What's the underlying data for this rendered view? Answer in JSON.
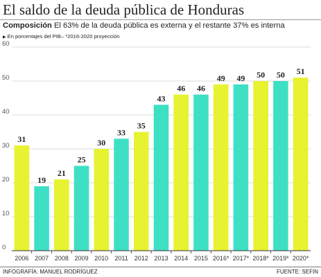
{
  "header": {
    "title": "El saldo de la deuda pública de Honduras",
    "subtitle_bold": "Composición",
    "subtitle_rest": " El 63% de la deuda pública es externa y el restante 37% es interna",
    "note": "En porcentajes del PIB– *2016-2020 proyección"
  },
  "footer": {
    "credit": "INFOGRAFÍA: MANUEL RODRÍGUEZ",
    "source": "FUENTE: SEFIN"
  },
  "colors": {
    "yellow": "#e7f230",
    "teal": "#3ee0c4",
    "grid": "#cfcfcf",
    "axis": "#333333"
  },
  "chart_data": {
    "type": "bar",
    "categories": [
      "2006",
      "2007",
      "2008",
      "2009",
      "2010",
      "2011",
      "2012",
      "2013",
      "2014",
      "2015",
      "2016*",
      "2017*",
      "2018*",
      "2019*",
      "2020*"
    ],
    "values": [
      31,
      19,
      21,
      25,
      30,
      33,
      35,
      43,
      46,
      46,
      49,
      49,
      50,
      50,
      51
    ],
    "bar_colors": [
      "yellow",
      "teal",
      "yellow",
      "teal",
      "yellow",
      "teal",
      "yellow",
      "teal",
      "yellow",
      "teal",
      "yellow",
      "teal",
      "yellow",
      "teal",
      "yellow"
    ],
    "ylim": [
      0,
      60
    ],
    "yticks": [
      0,
      10,
      20,
      30,
      40,
      50,
      60
    ],
    "grid": true,
    "data_labels": true
  }
}
